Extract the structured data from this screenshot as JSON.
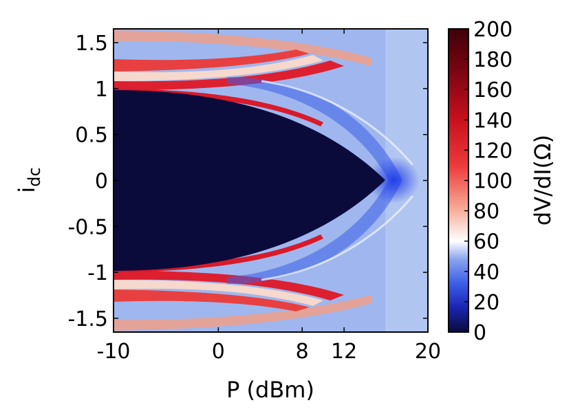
{
  "chart_data": {
    "type": "heatmap",
    "xlabel": "P (dBm)",
    "ylabel": "i",
    "ylabel_subscript": "dc",
    "xlim": [
      -10,
      20
    ],
    "ylim": [
      -1.65,
      1.65
    ],
    "xticks": [
      {
        "value": -10,
        "label": "-10"
      },
      {
        "value": 0,
        "label": "0"
      },
      {
        "value": 8,
        "label": "8"
      },
      {
        "value": 12,
        "label": "12"
      },
      {
        "value": 20,
        "label": "20"
      }
    ],
    "yticks": [
      {
        "value": 1.5,
        "label": "1.5"
      },
      {
        "value": 1,
        "label": "1"
      },
      {
        "value": 0.5,
        "label": "0.5"
      },
      {
        "value": 0,
        "label": "0"
      },
      {
        "value": -0.5,
        "label": "-0.5"
      },
      {
        "value": -1,
        "label": "-1"
      },
      {
        "value": -1.5,
        "label": "-1.5"
      }
    ],
    "colorbar": {
      "label": "dV/dI(Ω)",
      "range": [
        0,
        200
      ],
      "ticks": [
        {
          "value": 200,
          "label": "200"
        },
        {
          "value": 180,
          "label": "180"
        },
        {
          "value": 160,
          "label": "160"
        },
        {
          "value": 140,
          "label": "140"
        },
        {
          "value": 120,
          "label": "120"
        },
        {
          "value": 100,
          "label": "100"
        },
        {
          "value": 80,
          "label": "80"
        },
        {
          "value": 60,
          "label": "60"
        },
        {
          "value": 40,
          "label": "40"
        },
        {
          "value": 20,
          "label": "20"
        },
        {
          "value": 0,
          "label": "0"
        }
      ],
      "colormap": [
        "#0b0b3b",
        "#1e3ce6",
        "#9fb6ee",
        "#ffffff",
        "#f4a08c",
        "#e8192a",
        "#b40a18",
        "#3d0008"
      ]
    },
    "regions": {
      "superconducting_zero_resistance": {
        "description_value": 0,
        "p_start": -10,
        "p_end": 15.8,
        "idc_max_at_pmin": 0.99
      },
      "red_resistance_peaks": {
        "approx_idc": [
          1.0,
          1.25,
          -1.0,
          -1.25
        ],
        "value": 110
      },
      "normal_state_background": {
        "value": 45
      }
    }
  }
}
